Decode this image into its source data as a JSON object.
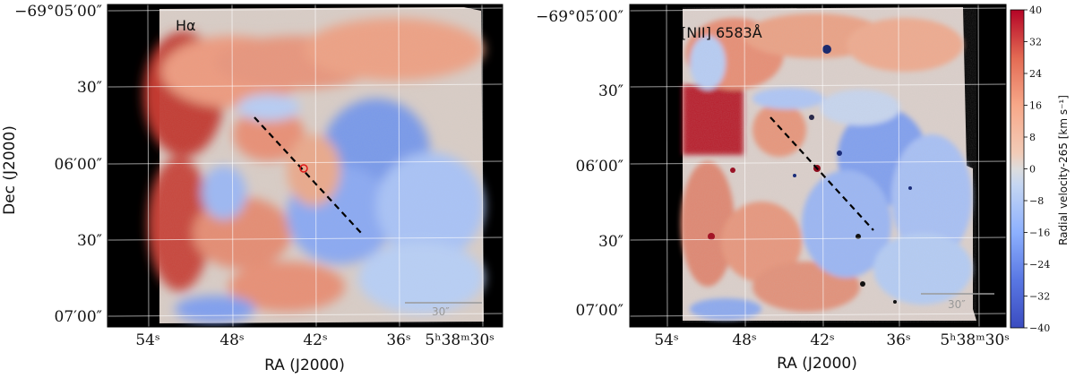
{
  "panels": [
    {
      "label": "Hα",
      "xlabel": "RA (J2000)",
      "ylabel": "Dec (J2000)",
      "dec_ticks": [
        "−69°05′00″",
        "30″",
        "06′00″",
        "30″",
        "07′00″"
      ],
      "ra_ticks": [
        "54ˢ",
        "48ˢ",
        "42ˢ",
        "36ˢ",
        "5ʰ38ᵐ30ˢ"
      ],
      "scalebar_label": "30″"
    },
    {
      "label": "[NII] 6583Å",
      "xlabel": "RA (J2000)",
      "dec_ticks": [
        "−69°05′00″",
        "30″",
        "06′00″",
        "30″",
        "07′00″"
      ],
      "ra_ticks": [
        "54ˢ",
        "48ˢ",
        "42ˢ",
        "36ˢ",
        "5ʰ38ᵐ30ˢ"
      ],
      "scalebar_label": "30″"
    }
  ],
  "colorbar": {
    "label": "Radial velocity-265 [km s⁻¹]",
    "ticks": [
      "40",
      "32",
      "24",
      "16",
      "8",
      "0",
      "−8",
      "−16",
      "−24",
      "−32",
      "−40"
    ],
    "range": [
      -40,
      40
    ],
    "colormap": "coolwarm",
    "colors": {
      "low": "#3b4cc0",
      "mid": "#dddddd",
      "high": "#b40426"
    }
  }
}
